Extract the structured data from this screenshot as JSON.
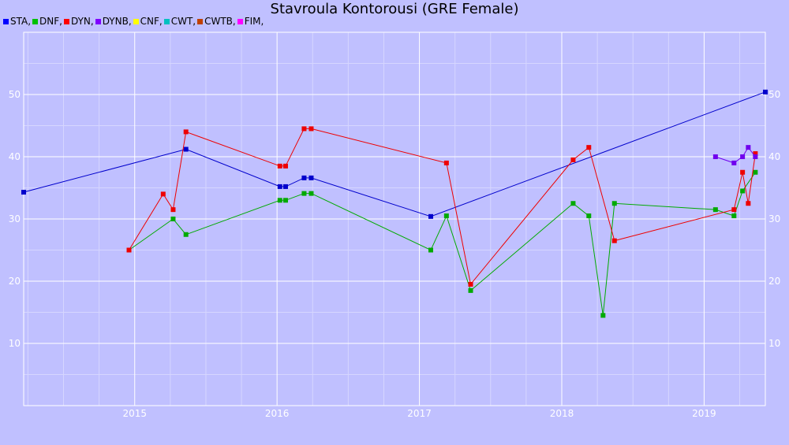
{
  "chart_data": {
    "type": "line",
    "title": "Stavroula Kontorousi (GRE Female)",
    "xlabel": "",
    "ylabel": "",
    "xlim": [
      2014.22,
      2019.43
    ],
    "ylim": [
      0,
      60
    ],
    "x_ticks": [
      2015,
      2016,
      2017,
      2018,
      2019
    ],
    "y_ticks": [
      10,
      20,
      30,
      40,
      50
    ],
    "grid": true,
    "legend_position": "top-left",
    "legend": [
      {
        "label": "STA,",
        "color": "#0000ff"
      },
      {
        "label": "DNF,",
        "color": "#00c000"
      },
      {
        "label": "DYN,",
        "color": "#ff0000"
      },
      {
        "label": "DYNB,",
        "color": "#8000ff"
      },
      {
        "label": "CNF,",
        "color": "#ffff00"
      },
      {
        "label": "CWT,",
        "color": "#00c0c0"
      },
      {
        "label": "CWTB,",
        "color": "#c04000"
      },
      {
        "label": "FIM,",
        "color": "#ff00ff"
      }
    ],
    "series": [
      {
        "name": "STA",
        "color": "#0000cc",
        "points": [
          [
            2014.22,
            34.3
          ],
          [
            2015.36,
            41.2
          ],
          [
            2016.02,
            35.2
          ],
          [
            2016.06,
            35.2
          ],
          [
            2016.19,
            36.6
          ],
          [
            2016.24,
            36.6
          ],
          [
            2017.08,
            30.4
          ],
          [
            2019.43,
            50.4
          ]
        ]
      },
      {
        "name": "DNF",
        "color": "#00aa00",
        "points": [
          [
            2014.96,
            25.0
          ],
          [
            2015.27,
            30.0
          ],
          [
            2015.36,
            27.5
          ],
          [
            2016.02,
            33.0
          ],
          [
            2016.06,
            33.0
          ],
          [
            2016.19,
            34.1
          ],
          [
            2016.24,
            34.1
          ],
          [
            2017.08,
            25.0
          ],
          [
            2017.19,
            30.5
          ],
          [
            2017.36,
            18.5
          ],
          [
            2018.08,
            32.5
          ],
          [
            2018.19,
            30.5
          ],
          [
            2018.29,
            14.5
          ],
          [
            2018.37,
            32.5
          ],
          [
            2019.08,
            31.5
          ],
          [
            2019.21,
            30.5
          ],
          [
            2019.27,
            34.5
          ],
          [
            2019.36,
            37.5
          ]
        ]
      },
      {
        "name": "DYN",
        "color": "#ee0000",
        "points": [
          [
            2014.96,
            25.0
          ],
          [
            2015.2,
            34.0
          ],
          [
            2015.27,
            31.5
          ],
          [
            2015.36,
            44.0
          ],
          [
            2016.02,
            38.5
          ],
          [
            2016.06,
            38.5
          ],
          [
            2016.19,
            44.5
          ],
          [
            2016.24,
            44.5
          ],
          [
            2017.19,
            39.0
          ],
          [
            2017.36,
            19.5
          ],
          [
            2018.08,
            39.5
          ],
          [
            2018.19,
            41.5
          ],
          [
            2018.37,
            26.5
          ],
          [
            2019.21,
            31.5
          ],
          [
            2019.27,
            37.5
          ],
          [
            2019.31,
            32.5
          ],
          [
            2019.36,
            40.5
          ]
        ]
      },
      {
        "name": "DYNB",
        "color": "#7000ee",
        "points": [
          [
            2019.08,
            40.0
          ],
          [
            2019.21,
            39.0
          ],
          [
            2019.27,
            40.0
          ],
          [
            2019.31,
            41.5
          ],
          [
            2019.36,
            40.0
          ]
        ]
      }
    ]
  }
}
